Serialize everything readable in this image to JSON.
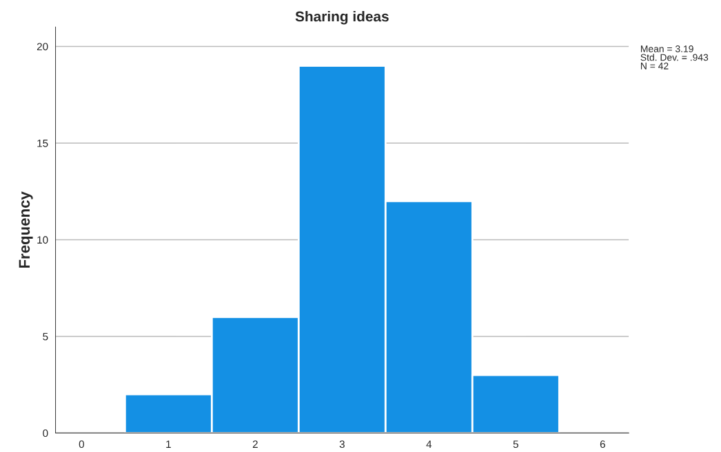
{
  "chart_data": {
    "type": "histogram",
    "title": "Sharing ideas",
    "ylabel": "Frequency",
    "bins": [
      0.5,
      1.5,
      2.5,
      3.5,
      4.5,
      5.5
    ],
    "values": [
      2,
      6,
      19,
      12,
      3
    ],
    "color": "#1490e4",
    "xlim": [
      -0.3,
      6.3
    ],
    "xticks": [
      0,
      1,
      2,
      3,
      4,
      5,
      6
    ],
    "ylim": [
      0,
      21
    ],
    "yticks": [
      0,
      5,
      10,
      15,
      20
    ],
    "grid": "y",
    "annotations": [
      "Mean = 3.19\nStd. Dev. = .943\nN = 42"
    ]
  }
}
